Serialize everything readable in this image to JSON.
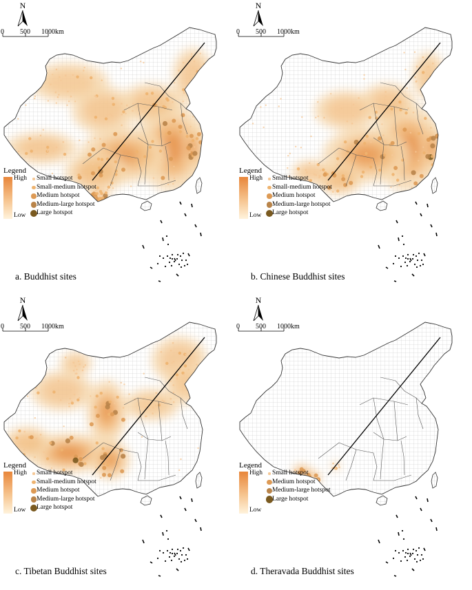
{
  "scale_bar": {
    "labels": [
      "0",
      "500",
      "1000km"
    ]
  },
  "north_label": "N",
  "legend": {
    "title": "Legend",
    "high": "High",
    "low": "Low",
    "colors": {
      "small": "#f5c897",
      "small_medium": "#eeb36f",
      "medium": "#dd9a55",
      "medium_large": "#b9844a",
      "large": "#7a5a20"
    }
  },
  "panels": [
    {
      "id": "a",
      "caption": "a. Buddhist sites",
      "legend_items": [
        "Small hotspot",
        "Small-medium hotspot",
        "Medium hotspot",
        "Medium-large hotspot",
        "Large hotspot"
      ],
      "hotspot_pattern": "widespread, strongest in south-east"
    },
    {
      "id": "b",
      "caption": "b. Chinese Buddhist sites",
      "legend_items": [
        "Small hotspot",
        "Small-medium hotspot",
        "Medium hotspot",
        "Medium-large hotspot",
        "Large hotspot"
      ],
      "hotspot_pattern": "concentrated in eastern and southern China"
    },
    {
      "id": "c",
      "caption": "c. Tibetan Buddhist sites",
      "legend_items": [
        "Small hotspot",
        "Small-medium hotspot",
        "Medium hotspot",
        "Medium-large hotspot",
        "Large hotspot"
      ],
      "hotspot_pattern": "concentrated in Tibet and western China"
    },
    {
      "id": "d",
      "caption": "d. Theravada Buddhist sites",
      "legend_items": [
        "Small hotspot",
        "Medium hotspot",
        "Medium-large hotspot",
        "Large hotspot"
      ],
      "hotspot_pattern": "concentrated in southern Yunnan"
    }
  ]
}
